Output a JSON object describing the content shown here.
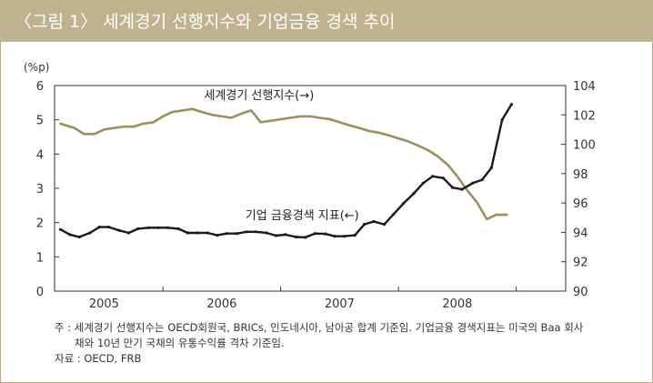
{
  "header": {
    "title": "〈그림 1〉 세계경기 선행지수와 기업금융 경색 추이"
  },
  "notes": {
    "line1": "주 : 세계경기 선행지수는 OECD회원국, BRICs, 인도네시아, 남아공 합계 기준임. 기업금융 경색지표는 미국의 Baa 회사",
    "line2": "채와 10년 만기 국채의 유통수익률 격차 기준임.",
    "line3": "자료 : OECD, FRB"
  },
  "colors": {
    "header_bg": "#bfb38f",
    "series_leading": "#9a8f5e",
    "series_spread": "#1a1a1a"
  },
  "chart_data": {
    "type": "line",
    "y_left_unit": "(%p)",
    "ylim_left": [
      0,
      6
    ],
    "yticks_left": [
      "0",
      "1",
      "2",
      "3",
      "4",
      "5",
      "6"
    ],
    "ylim_right": [
      90,
      104
    ],
    "yticks_right": [
      "90",
      "92",
      "94",
      "96",
      "98",
      "100",
      "102",
      "104"
    ],
    "xlim": [
      2004.58,
      2008.92
    ],
    "x_tick_labels": [
      "2005",
      "2006",
      "2007",
      "2008"
    ],
    "x_label_positions": [
      2005.0,
      2006.0,
      2007.0,
      2008.0
    ],
    "x_tick_positions": [
      2005.5,
      2006.5,
      2007.5,
      2008.5
    ],
    "grid": false,
    "series": [
      {
        "name": "세계경기 선행지수(→)",
        "axis": "right",
        "x": [
          2004.63,
          2004.75,
          2004.83,
          2004.92,
          2005.0,
          2005.08,
          2005.17,
          2005.25,
          2005.33,
          2005.42,
          2005.5,
          2005.58,
          2005.67,
          2005.75,
          2005.83,
          2005.92,
          2006.0,
          2006.08,
          2006.17,
          2006.25,
          2006.33,
          2006.42,
          2006.5,
          2006.58,
          2006.67,
          2006.75,
          2006.83,
          2006.92,
          2007.0,
          2007.08,
          2007.17,
          2007.25,
          2007.33,
          2007.42,
          2007.5,
          2007.58,
          2007.67,
          2007.75,
          2007.83,
          2007.92,
          2008.0,
          2008.08,
          2008.17,
          2008.25,
          2008.33,
          2008.42
        ],
        "y": [
          101.4,
          101.1,
          100.7,
          100.7,
          101.0,
          101.1,
          101.2,
          101.2,
          101.4,
          101.5,
          101.9,
          102.2,
          102.3,
          102.4,
          102.2,
          102.0,
          101.9,
          101.8,
          102.1,
          102.3,
          101.5,
          101.6,
          101.7,
          101.8,
          101.9,
          101.9,
          101.8,
          101.7,
          101.5,
          101.3,
          101.1,
          100.9,
          100.8,
          100.6,
          100.4,
          100.2,
          99.9,
          99.6,
          99.2,
          98.6,
          97.8,
          96.9,
          96.0,
          94.9,
          95.2,
          95.2
        ],
        "style": "line_olive"
      },
      {
        "name": "기업 금융경색 지표(←)",
        "axis": "left",
        "x": [
          2004.63,
          2004.71,
          2004.79,
          2004.88,
          2004.96,
          2005.04,
          2005.13,
          2005.21,
          2005.29,
          2005.38,
          2005.46,
          2005.54,
          2005.63,
          2005.71,
          2005.79,
          2005.88,
          2005.96,
          2006.04,
          2006.13,
          2006.21,
          2006.29,
          2006.38,
          2006.46,
          2006.54,
          2006.63,
          2006.71,
          2006.79,
          2006.88,
          2006.96,
          2007.04,
          2007.13,
          2007.21,
          2007.29,
          2007.38,
          2007.46,
          2007.54,
          2007.63,
          2007.71,
          2007.79,
          2007.88,
          2007.96,
          2008.04,
          2008.13,
          2008.21,
          2008.29,
          2008.38,
          2008.46
        ],
        "y": [
          1.8,
          1.65,
          1.58,
          1.7,
          1.87,
          1.87,
          1.77,
          1.7,
          1.82,
          1.85,
          1.85,
          1.85,
          1.82,
          1.7,
          1.7,
          1.7,
          1.63,
          1.68,
          1.68,
          1.73,
          1.73,
          1.7,
          1.62,
          1.65,
          1.58,
          1.57,
          1.68,
          1.67,
          1.6,
          1.6,
          1.63,
          1.95,
          2.03,
          1.95,
          2.25,
          2.55,
          2.85,
          3.15,
          3.35,
          3.3,
          3.02,
          2.97,
          3.15,
          3.25,
          3.6,
          5.0,
          5.45
        ],
        "style": "line_dark_markers"
      }
    ],
    "annotations": [
      {
        "text": "세계경기 선행지수(→)",
        "x": 2005.85,
        "y_left": 5.6
      },
      {
        "text": "기업 금융경색 지표(←)",
        "x": 2006.2,
        "y_left": 2.1
      }
    ]
  }
}
